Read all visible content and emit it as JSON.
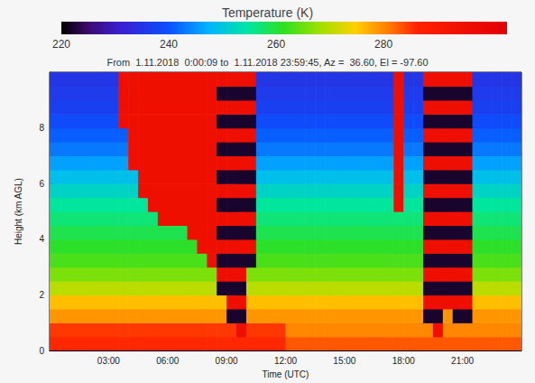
{
  "chart_data": {
    "type": "heatmap",
    "title": "Temperature (K)",
    "subtitle": "From  1.11.2018  0:00:09 to  1.11.2018 23:59:45, Az =  36.60, El = -97.60",
    "x_label": "Time (UTC)",
    "y_label": "Height (km AGL)",
    "xlim": [
      0,
      24
    ],
    "xticks": [
      {
        "value": 3,
        "label": "03:00"
      },
      {
        "value": 6,
        "label": "06:00"
      },
      {
        "value": 9,
        "label": "09:00"
      },
      {
        "value": 12,
        "label": "12:00"
      },
      {
        "value": 15,
        "label": "15:00"
      },
      {
        "value": 18,
        "label": "18:00"
      },
      {
        "value": 21,
        "label": "21:00"
      }
    ],
    "ylim": [
      0,
      10
    ],
    "yticks": [
      0,
      2,
      4,
      6,
      8
    ],
    "x": [
      0.25,
      0.75,
      1.25,
      1.75,
      2.25,
      2.75,
      3.25,
      3.75,
      4.25,
      4.75,
      5.25,
      5.75,
      6.25,
      6.75,
      7.25,
      7.75,
      8.25,
      8.75,
      9.25,
      9.75,
      10.25,
      10.75,
      11.25,
      11.75,
      12.25,
      12.75,
      13.25,
      13.75,
      14.25,
      14.75,
      15.25,
      15.75,
      16.25,
      16.75,
      17.25,
      17.75,
      18.25,
      18.75,
      19.25,
      19.75,
      20.25,
      20.75,
      21.25,
      21.75,
      22.25,
      22.75,
      23.25,
      23.75
    ],
    "y": [
      0.25,
      0.75,
      1.25,
      1.75,
      2.25,
      2.75,
      3.25,
      3.75,
      4.25,
      4.75,
      5.25,
      5.75,
      6.25,
      6.75,
      7.25,
      7.75,
      8.25,
      8.75,
      9.25,
      9.75
    ],
    "values": [
      [
        286,
        286,
        286,
        286,
        286,
        286,
        286,
        286,
        286,
        286,
        286,
        286,
        286,
        286,
        286,
        286,
        286,
        286,
        286,
        286,
        286,
        286,
        286,
        286,
        283,
        283,
        283,
        283,
        283,
        283,
        283,
        283,
        283,
        283,
        283,
        283,
        283,
        283,
        283,
        283,
        283,
        283,
        283,
        283,
        283,
        283,
        283,
        283
      ],
      [
        285,
        285,
        285,
        285,
        285,
        285,
        285,
        285,
        285,
        285,
        285,
        285,
        285,
        285,
        285,
        285,
        285,
        285,
        285,
        295,
        285,
        285,
        285,
        285,
        280,
        280,
        280,
        280,
        280,
        280,
        280,
        280,
        280,
        280,
        280,
        280,
        280,
        280,
        280,
        295,
        280,
        280,
        280,
        280,
        280,
        280,
        280,
        280
      ],
      [
        279,
        279,
        279,
        279,
        279,
        279,
        279,
        279,
        279,
        279,
        279,
        279,
        279,
        279,
        279,
        279,
        279,
        279,
        222,
        222,
        279,
        279,
        279,
        279,
        279,
        279,
        279,
        279,
        279,
        279,
        279,
        279,
        279,
        279,
        279,
        279,
        279,
        279,
        222,
        222,
        279,
        222,
        222,
        279,
        279,
        279,
        279,
        279
      ],
      [
        276,
        276,
        276,
        276,
        276,
        276,
        276,
        276,
        276,
        276,
        276,
        276,
        276,
        276,
        276,
        276,
        276,
        276,
        295,
        295,
        276,
        276,
        276,
        276,
        276,
        276,
        276,
        276,
        276,
        276,
        276,
        276,
        276,
        276,
        276,
        276,
        276,
        276,
        295,
        295,
        295,
        295,
        295,
        276,
        276,
        276,
        276,
        276
      ],
      [
        270,
        270,
        270,
        270,
        270,
        270,
        270,
        270,
        270,
        270,
        270,
        270,
        270,
        270,
        270,
        270,
        270,
        222,
        222,
        222,
        270,
        270,
        270,
        270,
        270,
        270,
        270,
        270,
        270,
        270,
        270,
        270,
        270,
        270,
        270,
        270,
        270,
        270,
        222,
        222,
        222,
        222,
        222,
        270,
        270,
        270,
        270,
        270
      ],
      [
        266,
        266,
        266,
        266,
        266,
        266,
        266,
        266,
        266,
        266,
        266,
        266,
        266,
        266,
        266,
        266,
        266,
        295,
        295,
        295,
        266,
        266,
        266,
        266,
        266,
        266,
        266,
        266,
        266,
        266,
        266,
        266,
        266,
        266,
        266,
        266,
        266,
        266,
        295,
        295,
        295,
        295,
        295,
        266,
        266,
        266,
        266,
        266
      ],
      [
        263,
        263,
        263,
        263,
        263,
        263,
        263,
        263,
        263,
        263,
        263,
        263,
        263,
        263,
        263,
        263,
        295,
        222,
        222,
        222,
        222,
        263,
        263,
        263,
        263,
        263,
        263,
        263,
        263,
        263,
        263,
        263,
        263,
        263,
        263,
        263,
        263,
        263,
        222,
        222,
        222,
        222,
        222,
        263,
        263,
        263,
        263,
        263
      ],
      [
        261,
        261,
        261,
        261,
        261,
        261,
        261,
        261,
        261,
        261,
        261,
        261,
        261,
        261,
        261,
        295,
        295,
        295,
        295,
        295,
        295,
        261,
        261,
        261,
        261,
        261,
        261,
        261,
        261,
        261,
        261,
        261,
        261,
        261,
        261,
        261,
        261,
        261,
        295,
        295,
        295,
        295,
        295,
        261,
        261,
        261,
        261,
        261
      ],
      [
        259,
        259,
        259,
        259,
        259,
        259,
        259,
        259,
        259,
        259,
        259,
        259,
        259,
        259,
        295,
        295,
        295,
        222,
        222,
        222,
        222,
        259,
        259,
        259,
        259,
        259,
        259,
        259,
        259,
        259,
        259,
        259,
        259,
        259,
        259,
        259,
        259,
        259,
        222,
        222,
        222,
        222,
        222,
        259,
        259,
        259,
        259,
        259
      ],
      [
        257,
        257,
        257,
        257,
        257,
        257,
        257,
        257,
        257,
        257,
        257,
        295,
        295,
        295,
        295,
        295,
        295,
        295,
        295,
        295,
        295,
        257,
        257,
        257,
        257,
        257,
        257,
        257,
        257,
        257,
        257,
        257,
        257,
        257,
        257,
        257,
        257,
        257,
        295,
        295,
        295,
        295,
        295,
        257,
        257,
        257,
        257,
        257
      ],
      [
        255,
        255,
        255,
        255,
        255,
        255,
        255,
        255,
        255,
        255,
        295,
        295,
        295,
        295,
        295,
        295,
        295,
        222,
        222,
        222,
        222,
        255,
        255,
        255,
        255,
        255,
        255,
        255,
        255,
        255,
        255,
        255,
        255,
        255,
        255,
        295,
        255,
        255,
        222,
        222,
        222,
        222,
        222,
        255,
        255,
        255,
        255,
        255
      ],
      [
        252,
        252,
        252,
        252,
        252,
        252,
        252,
        252,
        252,
        295,
        295,
        295,
        295,
        295,
        295,
        295,
        295,
        295,
        295,
        295,
        295,
        252,
        252,
        252,
        252,
        252,
        252,
        252,
        252,
        252,
        252,
        252,
        252,
        252,
        252,
        295,
        252,
        252,
        295,
        295,
        295,
        295,
        295,
        252,
        252,
        252,
        252,
        252
      ],
      [
        249,
        249,
        249,
        249,
        249,
        249,
        249,
        249,
        249,
        295,
        295,
        295,
        295,
        295,
        295,
        295,
        295,
        222,
        222,
        222,
        222,
        249,
        249,
        249,
        249,
        249,
        249,
        249,
        249,
        249,
        249,
        249,
        249,
        249,
        249,
        295,
        249,
        249,
        222,
        222,
        222,
        222,
        222,
        249,
        249,
        249,
        249,
        249
      ],
      [
        246,
        246,
        246,
        246,
        246,
        246,
        246,
        246,
        295,
        295,
        295,
        295,
        295,
        295,
        295,
        295,
        295,
        295,
        295,
        295,
        295,
        246,
        246,
        246,
        246,
        246,
        246,
        246,
        246,
        246,
        246,
        246,
        246,
        246,
        246,
        295,
        246,
        246,
        295,
        295,
        295,
        295,
        295,
        246,
        246,
        246,
        246,
        246
      ],
      [
        243,
        243,
        243,
        243,
        243,
        243,
        243,
        243,
        295,
        295,
        295,
        295,
        295,
        295,
        295,
        295,
        295,
        222,
        222,
        222,
        222,
        243,
        243,
        243,
        243,
        243,
        243,
        243,
        243,
        243,
        243,
        243,
        243,
        243,
        243,
        295,
        243,
        243,
        222,
        222,
        222,
        222,
        222,
        243,
        243,
        243,
        243,
        243
      ],
      [
        241,
        241,
        241,
        241,
        241,
        241,
        241,
        241,
        295,
        295,
        295,
        295,
        295,
        295,
        295,
        295,
        295,
        295,
        295,
        295,
        295,
        241,
        241,
        241,
        241,
        241,
        241,
        241,
        241,
        241,
        241,
        241,
        241,
        241,
        241,
        295,
        241,
        241,
        295,
        295,
        295,
        295,
        295,
        241,
        241,
        241,
        241,
        241
      ],
      [
        239,
        239,
        239,
        239,
        239,
        239,
        239,
        295,
        295,
        295,
        295,
        295,
        295,
        295,
        295,
        295,
        295,
        222,
        222,
        222,
        222,
        239,
        239,
        239,
        239,
        239,
        239,
        239,
        239,
        239,
        239,
        239,
        239,
        239,
        239,
        295,
        239,
        239,
        222,
        222,
        222,
        222,
        222,
        239,
        239,
        239,
        239,
        239
      ],
      [
        237,
        237,
        237,
        237,
        237,
        237,
        237,
        295,
        295,
        295,
        295,
        295,
        295,
        295,
        295,
        295,
        295,
        295,
        295,
        295,
        295,
        237,
        237,
        237,
        237,
        237,
        237,
        237,
        237,
        237,
        237,
        237,
        237,
        237,
        237,
        295,
        237,
        237,
        295,
        295,
        295,
        295,
        295,
        237,
        237,
        237,
        237,
        237
      ],
      [
        236,
        236,
        236,
        236,
        236,
        236,
        236,
        295,
        295,
        295,
        295,
        295,
        295,
        295,
        295,
        295,
        295,
        222,
        222,
        222,
        222,
        236,
        236,
        236,
        236,
        236,
        236,
        236,
        236,
        236,
        236,
        236,
        236,
        236,
        236,
        295,
        236,
        236,
        222,
        222,
        222,
        222,
        222,
        236,
        236,
        236,
        236,
        236
      ],
      [
        235,
        235,
        235,
        235,
        235,
        235,
        235,
        295,
        295,
        295,
        295,
        295,
        295,
        295,
        295,
        295,
        295,
        295,
        295,
        295,
        295,
        235,
        235,
        235,
        235,
        235,
        235,
        235,
        235,
        235,
        235,
        235,
        235,
        235,
        235,
        295,
        235,
        235,
        295,
        295,
        295,
        295,
        295,
        235,
        235,
        235,
        235,
        235
      ]
    ],
    "colorbar": {
      "range": [
        220,
        303
      ],
      "ticks": [
        220,
        240,
        260,
        280
      ]
    }
  }
}
